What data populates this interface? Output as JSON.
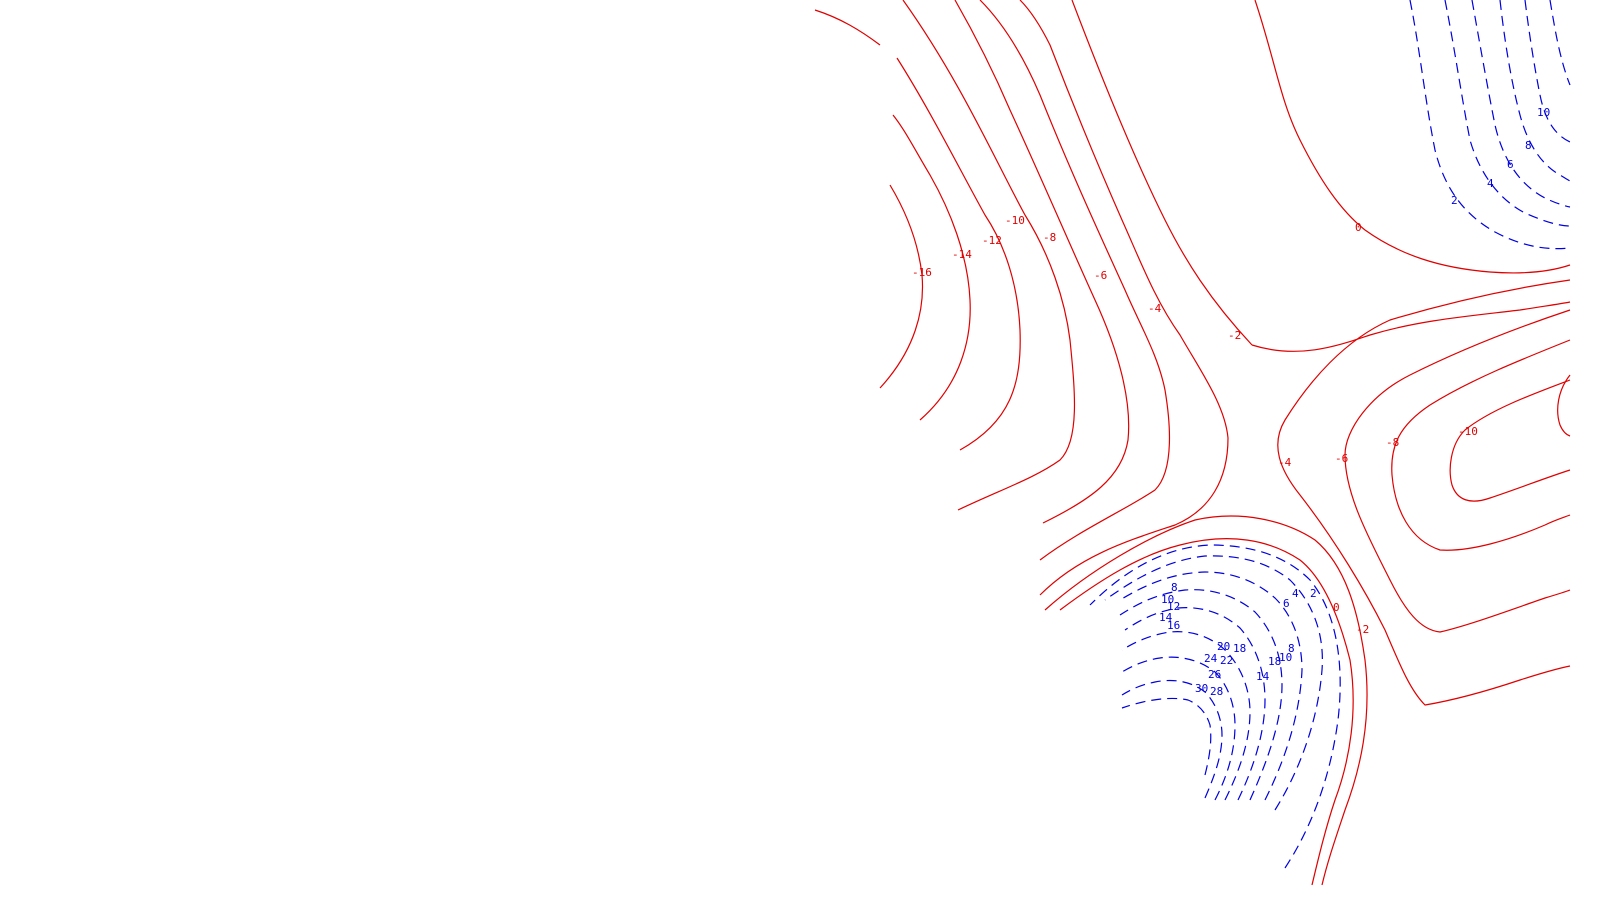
{
  "colors": {
    "negative": "#e00000",
    "positive": "#0000e0",
    "background": "#ffffff"
  },
  "chart_data": {
    "type": "contour",
    "negative_style": "solid",
    "positive_style": "dashed",
    "negative_levels": [
      -16,
      -14,
      -12,
      -10,
      -8,
      -6,
      -4,
      -2,
      0
    ],
    "positive_levels": [
      2,
      4,
      6,
      8,
      10,
      12,
      14,
      16,
      18,
      20,
      22,
      24,
      26,
      28,
      30
    ],
    "labels": {
      "n16": "-16",
      "n14": "-14",
      "n12": "-12",
      "n10a": "-10",
      "n8a": "-8",
      "n6a": "-6",
      "n4a": "-4",
      "n2a": "-2",
      "z0a": "0",
      "n4b": "-4",
      "n6b": "-6",
      "n8b": "-8",
      "n10b": "-10",
      "n2b": "-2",
      "z0b": "0",
      "p2a": "2",
      "p4a": "4",
      "p6a": "6",
      "p8a": "8",
      "p10a": "10",
      "p8b": "8",
      "p10b": "10",
      "p12b": "12",
      "p14b": "14",
      "p16b": "16",
      "p20": "20",
      "p18": "18",
      "p24": "24",
      "p22": "22",
      "p26": "26",
      "p30": "30",
      "p28": "28",
      "p18c": "18",
      "p10c": "10",
      "p8c": "8",
      "p14c": "14",
      "p4c": "4",
      "p2c": "2",
      "p6c": "6"
    }
  }
}
